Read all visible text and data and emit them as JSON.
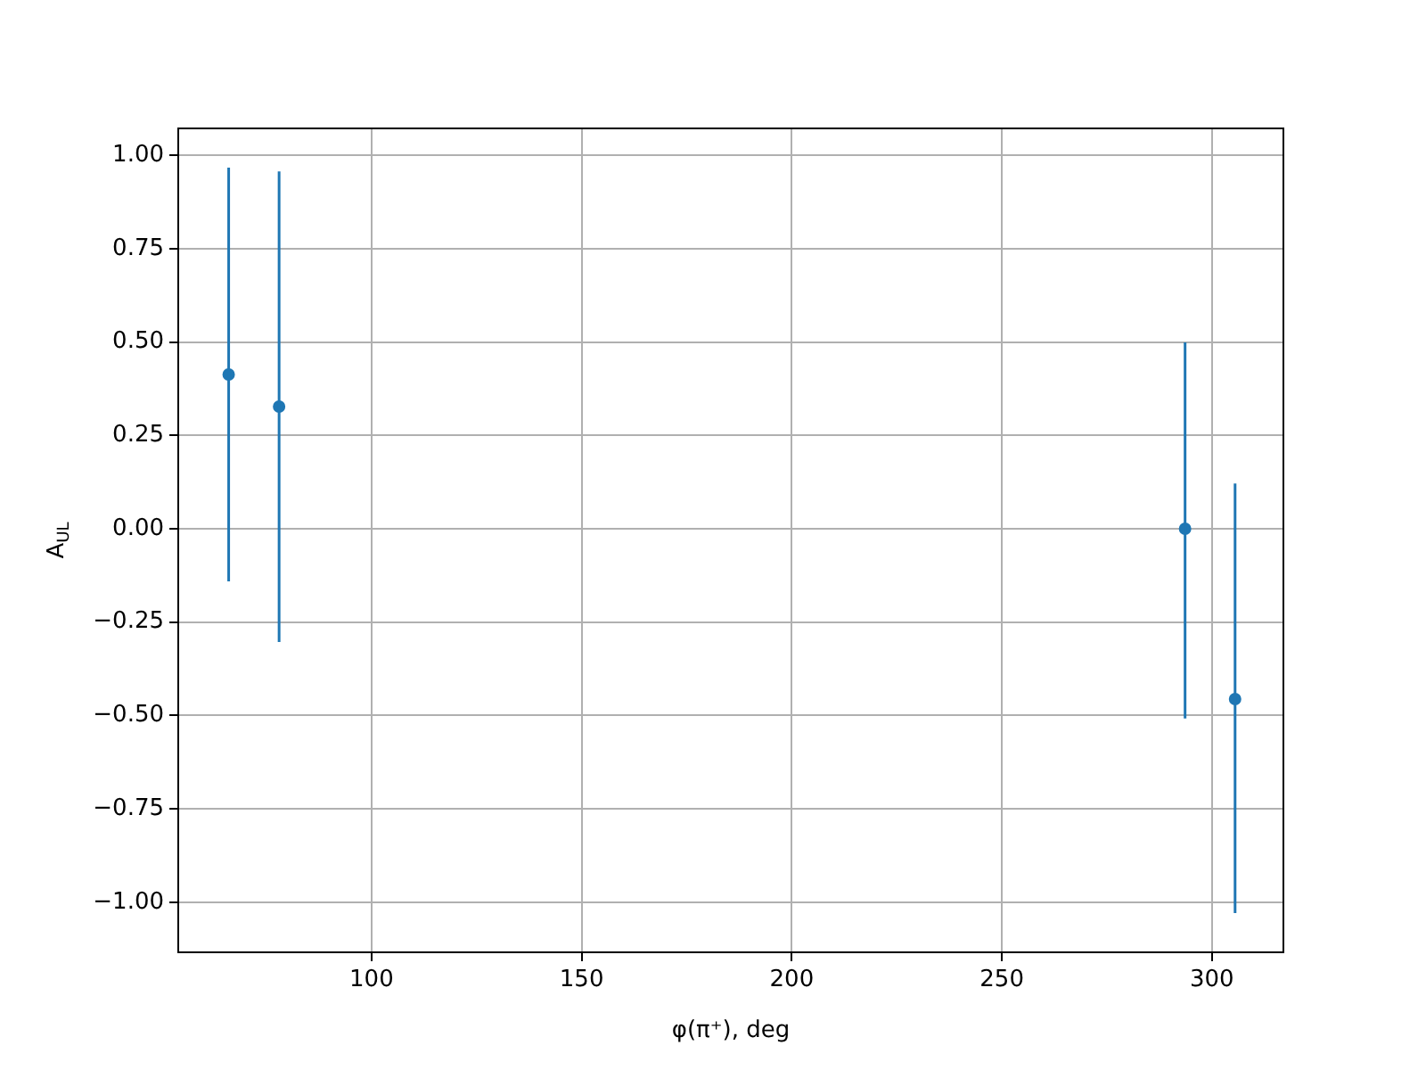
{
  "chart_data": {
    "type": "scatter",
    "xlabel": "φ(π⁺), deg",
    "ylabel": "A$_{UL}$",
    "x": [
      66,
      78,
      293.6,
      305.5
    ],
    "series": [
      {
        "color": "#1f77b4",
        "values": [
          0.413,
          0.327,
          0,
          -0.456
        ],
        "errors": [
          [
            -0.141,
            0.967
          ],
          [
            -0.303,
            0.957
          ],
          [
            -0.508,
            0.499
          ],
          [
            -1.029,
            0.121
          ]
        ]
      }
    ],
    "xlim": [
      54,
      317
    ],
    "xticks": [
      100,
      150,
      200,
      250,
      300
    ],
    "ylim": [
      -1.134,
      1.072
    ],
    "yticks": [
      {
        "value": -1,
        "label": "−1.00"
      },
      {
        "value": -0.75,
        "label": "−0.75"
      },
      {
        "value": -0.5,
        "label": "−0.50"
      },
      {
        "value": -0.25,
        "label": "−0.25"
      },
      {
        "value": 0,
        "label": "0.00"
      },
      {
        "value": 0.25,
        "label": "0.25"
      },
      {
        "value": 0.5,
        "label": "0.50"
      },
      {
        "value": 0.75,
        "label": "0.75"
      },
      {
        "value": 1,
        "label": "1.00"
      }
    ],
    "grid": true,
    "marker": "circle",
    "legend": false
  }
}
